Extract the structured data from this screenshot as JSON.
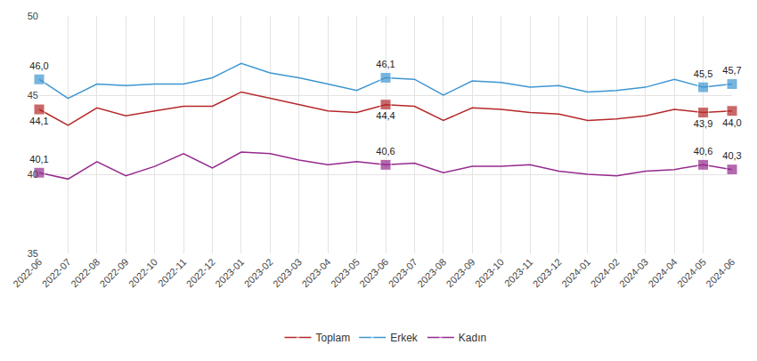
{
  "chart_data": {
    "type": "line",
    "categories": [
      "2022-06",
      "2022-07",
      "2022-08",
      "2022-09",
      "2022-10",
      "2022-11",
      "2022-12",
      "2023-01",
      "2023-02",
      "2023-03",
      "2023-04",
      "2023-05",
      "2023-06",
      "2023-07",
      "2023-08",
      "2023-09",
      "2023-10",
      "2023-11",
      "2023-12",
      "2024-01",
      "2024-02",
      "2024-03",
      "2024-04",
      "2024-05",
      "2024-06"
    ],
    "series": [
      {
        "name": "Toplam",
        "color": "#b5292b",
        "values": [
          44.1,
          43.1,
          44.2,
          43.7,
          44.0,
          44.3,
          44.3,
          45.2,
          44.8,
          44.4,
          44.0,
          43.9,
          44.4,
          44.3,
          43.4,
          44.2,
          44.1,
          43.9,
          43.8,
          43.4,
          43.5,
          43.7,
          44.1,
          43.9,
          44.0
        ],
        "value_labels": [
          "44,1",
          null,
          null,
          null,
          null,
          null,
          null,
          null,
          null,
          null,
          null,
          null,
          "44,4",
          null,
          null,
          null,
          null,
          null,
          null,
          null,
          null,
          null,
          null,
          "43,9",
          "44,0"
        ]
      },
      {
        "name": "Erkek",
        "color": "#3d96d1",
        "values": [
          46.0,
          44.8,
          45.7,
          45.6,
          45.7,
          45.7,
          46.1,
          47.0,
          46.4,
          46.1,
          45.7,
          45.3,
          46.1,
          46.0,
          45.0,
          45.9,
          45.8,
          45.5,
          45.6,
          45.2,
          45.3,
          45.5,
          46.0,
          45.5,
          45.7
        ],
        "value_labels": [
          "46,0",
          null,
          null,
          null,
          null,
          null,
          null,
          null,
          null,
          null,
          null,
          null,
          "46,1",
          null,
          null,
          null,
          null,
          null,
          null,
          null,
          null,
          null,
          null,
          "45,5",
          "45,7"
        ]
      },
      {
        "name": "Kadın",
        "color": "#952a8e",
        "values": [
          40.1,
          39.7,
          40.8,
          39.9,
          40.5,
          41.3,
          40.4,
          41.4,
          41.3,
          40.9,
          40.6,
          40.8,
          40.6,
          40.7,
          40.1,
          40.5,
          40.5,
          40.6,
          40.2,
          40.0,
          39.9,
          40.2,
          40.3,
          40.6,
          40.3
        ],
        "value_labels": [
          "40,1",
          null,
          null,
          null,
          null,
          null,
          null,
          null,
          null,
          null,
          null,
          null,
          "40,6",
          null,
          null,
          null,
          null,
          null,
          null,
          null,
          null,
          null,
          null,
          "40,6",
          "40,3"
        ]
      }
    ],
    "ylim": [
      35,
      50
    ],
    "yticks": [
      35,
      40,
      45,
      50
    ],
    "grid": true,
    "legend": "bottom",
    "data_labels": true,
    "marker": "square"
  }
}
